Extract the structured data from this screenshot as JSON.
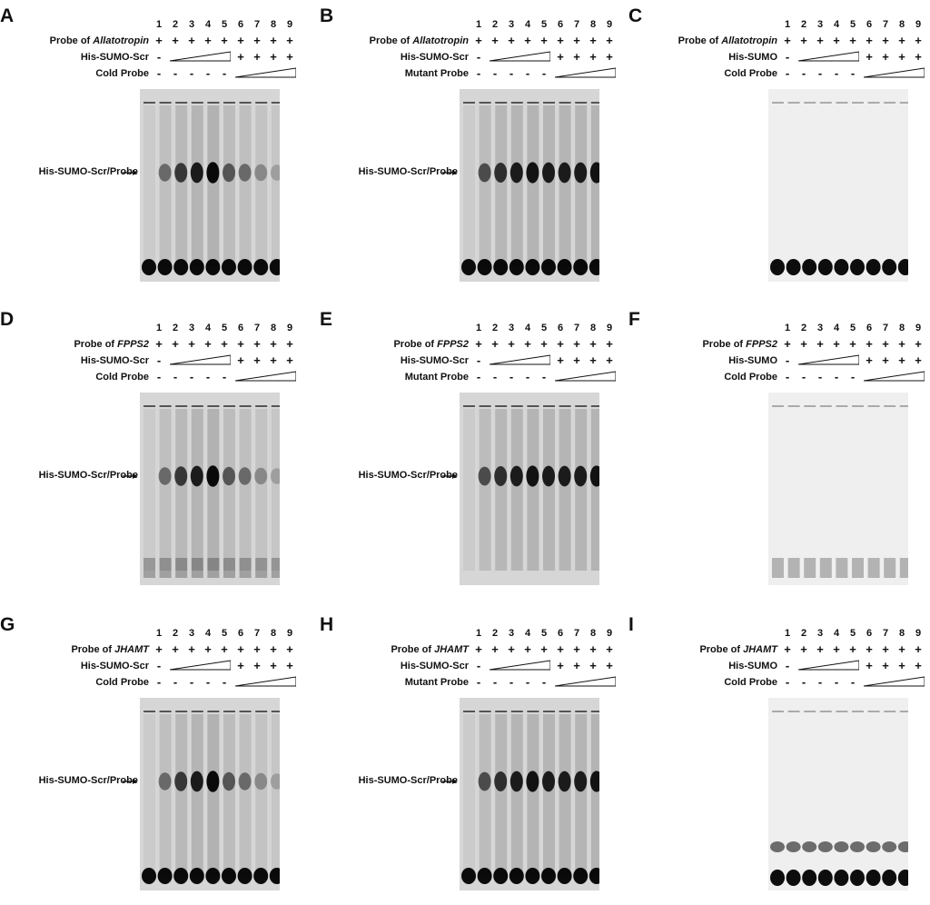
{
  "figure": {
    "lanes": [
      "1",
      "2",
      "3",
      "4",
      "5",
      "6",
      "7",
      "8",
      "9"
    ],
    "plus": "+",
    "minus": "-",
    "band_label": "His-SUMO-Scr/Probe",
    "panels": [
      {
        "letter": "A",
        "probe_prefix": "Probe of ",
        "gene": "Allatotropin",
        "protein": "His-SUMO-Scr",
        "competitor": "Cold Probe",
        "gel": "strong-competed",
        "bottom": "tight"
      },
      {
        "letter": "B",
        "probe_prefix": "Probe of ",
        "gene": "Allatotropin",
        "protein": "His-SUMO-Scr",
        "competitor": "Mutant Probe",
        "gel": "strong-persist",
        "bottom": "tight"
      },
      {
        "letter": "C",
        "probe_prefix": "Probe of ",
        "gene": "Allatotropin",
        "protein": "His-SUMO",
        "competitor": "Cold Probe",
        "gel": "none",
        "bottom": "tight"
      },
      {
        "letter": "D",
        "probe_prefix": "Probe of ",
        "gene": "FPPS2",
        "protein": "His-SUMO-Scr",
        "competitor": "Cold Probe",
        "gel": "strong-competed",
        "bottom": "faint"
      },
      {
        "letter": "E",
        "probe_prefix": "Probe of ",
        "gene": "FPPS2",
        "protein": "His-SUMO-Scr",
        "competitor": "Mutant Probe",
        "gel": "strong-persist",
        "bottom": "none"
      },
      {
        "letter": "F",
        "probe_prefix": "Probe of ",
        "gene": "FPPS2",
        "protein": "His-SUMO",
        "competitor": "Cold Probe",
        "gel": "none",
        "bottom": "faint"
      },
      {
        "letter": "G",
        "probe_prefix": "Probe of ",
        "gene": "JHAMT",
        "protein": "His-SUMO-Scr",
        "competitor": "Cold Probe",
        "gel": "strong-competed",
        "bottom": "tight"
      },
      {
        "letter": "H",
        "probe_prefix": "Probe of ",
        "gene": "JHAMT",
        "protein": "His-SUMO-Scr",
        "competitor": "Mutant Probe",
        "gel": "strong-persist",
        "bottom": "tight"
      },
      {
        "letter": "I",
        "probe_prefix": "Probe of ",
        "gene": "JHAMT",
        "protein": "His-SUMO",
        "competitor": "Cold Probe",
        "gel": "none",
        "bottom": "double"
      }
    ]
  }
}
